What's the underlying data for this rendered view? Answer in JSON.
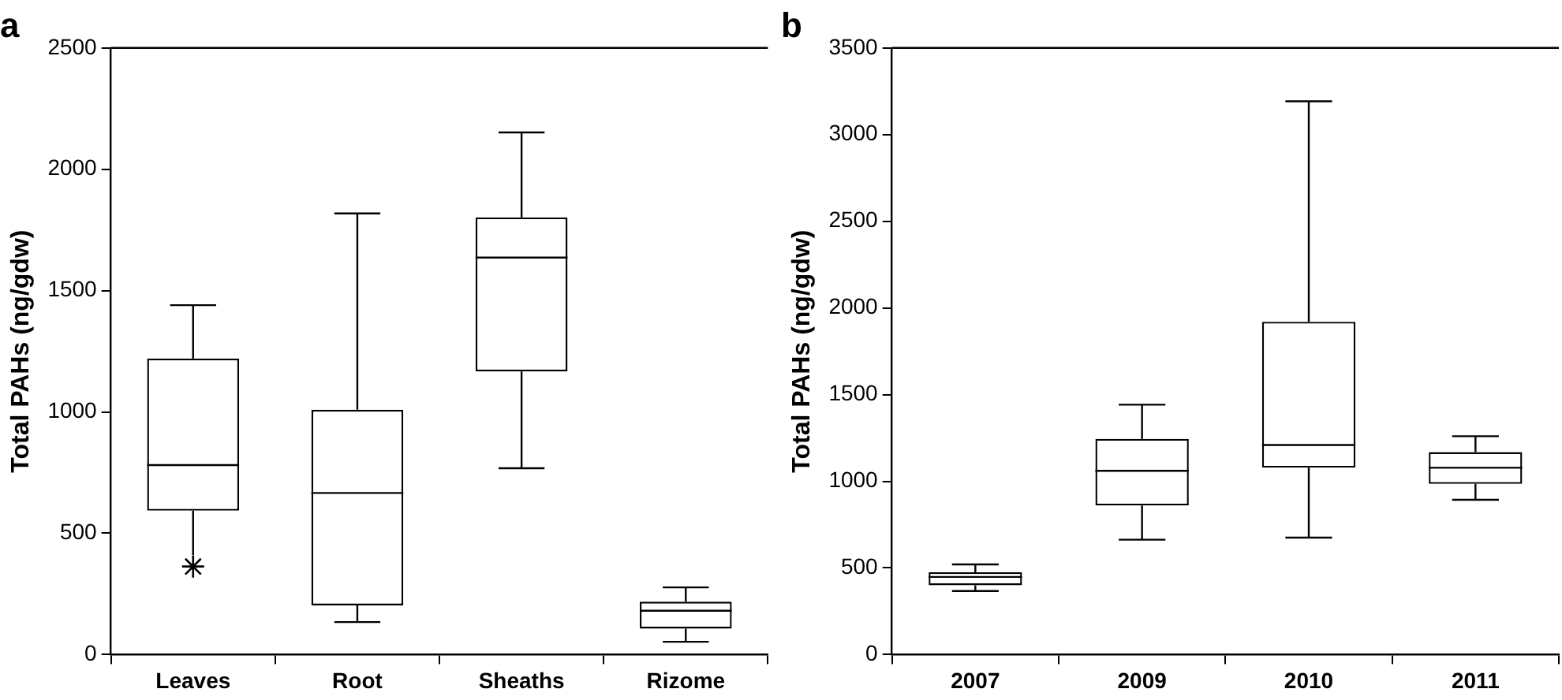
{
  "chart_data": [
    {
      "type": "box",
      "title": "a",
      "ylabel": "Total PAHs (ng/gdw)",
      "categories": [
        "Leaves",
        "Root",
        "Sheaths",
        "Rizome"
      ],
      "ylim": [
        0,
        2500
      ],
      "yticks": [
        0,
        500,
        1000,
        1500,
        2000,
        2500
      ],
      "grid": false,
      "legend": false,
      "marker": "star",
      "boxes": [
        {
          "low": 410,
          "q1": 593,
          "median": 781,
          "q3": 1220,
          "high": 1440,
          "outliers": [
            363
          ]
        },
        {
          "low": 134,
          "q1": 203,
          "median": 666,
          "q3": 1009,
          "high": 1818
        },
        {
          "low": 768,
          "q1": 1167,
          "median": 1636,
          "q3": 1802,
          "high": 2152
        },
        {
          "low": 53,
          "q1": 107,
          "median": 181,
          "q3": 218,
          "high": 277
        }
      ]
    },
    {
      "type": "box",
      "title": "b",
      "ylabel": "Total PAHs (ng/gdw)",
      "categories": [
        "2007",
        "2009",
        "2010",
        "2011"
      ],
      "ylim": [
        0,
        3500
      ],
      "yticks": [
        0,
        500,
        1000,
        1500,
        2000,
        2500,
        3000,
        3500
      ],
      "grid": false,
      "legend": false,
      "boxes": [
        {
          "low": 367,
          "q1": 400,
          "median": 448,
          "q3": 475,
          "high": 520
        },
        {
          "low": 663,
          "q1": 860,
          "median": 1060,
          "q3": 1245,
          "high": 1442
        },
        {
          "low": 675,
          "q1": 1078,
          "median": 1209,
          "q3": 1920,
          "high": 3192
        },
        {
          "low": 893,
          "q1": 985,
          "median": 1078,
          "q3": 1168,
          "high": 1260
        }
      ]
    }
  ]
}
